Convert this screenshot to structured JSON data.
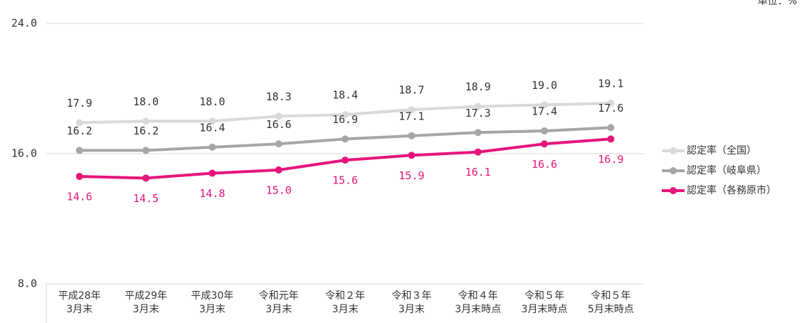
{
  "chart_data": {
    "type": "line",
    "unit_note": "単位：%",
    "categories": [
      "平成28年\n3月末",
      "平成29年\n3月末",
      "平成30年\n3月末",
      "令和元年\n3月末",
      "令和２年\n3月末",
      "令和３年\n3月末",
      "令和４年\n3月末時点",
      "令和５年\n3月末時点",
      "令和５年\n5月末時点"
    ],
    "ylim": [
      8,
      24
    ],
    "yticks": [
      {
        "value": 8,
        "label": "8.0"
      },
      {
        "value": 16,
        "label": "16.0"
      },
      {
        "value": 24,
        "label": "24.0"
      }
    ],
    "grid": true,
    "legend": "right",
    "series": [
      {
        "name": "認定率（全国）",
        "color": "#d9d9d9",
        "label_color": "#333333",
        "label_position": "above",
        "values": [
          17.9,
          18.0,
          18.0,
          18.3,
          18.4,
          18.7,
          18.9,
          19.0,
          19.1
        ],
        "value_labels": [
          "17.9",
          "18.0",
          "18.0",
          "18.3",
          "18.4",
          "18.7",
          "18.9",
          "19.0",
          "19.1"
        ]
      },
      {
        "name": "認定率（岐阜県）",
        "color": "#a6a6a6",
        "label_color": "#333333",
        "label_position": "above",
        "values": [
          16.2,
          16.2,
          16.4,
          16.6,
          16.9,
          17.1,
          17.3,
          17.4,
          17.6
        ],
        "value_labels": [
          "16.2",
          "16.2",
          "16.4",
          "16.6",
          "16.9",
          "17.1",
          "17.3",
          "17.4",
          "17.6"
        ]
      },
      {
        "name": "認定率（各務原市）",
        "color": "#e6157a",
        "label_color": "#e6157a",
        "label_position": "below",
        "values": [
          14.6,
          14.5,
          14.8,
          15.0,
          15.6,
          15.9,
          16.1,
          16.6,
          16.9
        ],
        "value_labels": [
          "14.6",
          "14.5",
          "14.8",
          "15.0",
          "15.6",
          "15.9",
          "16.1",
          "16.6",
          "16.9"
        ]
      }
    ]
  }
}
